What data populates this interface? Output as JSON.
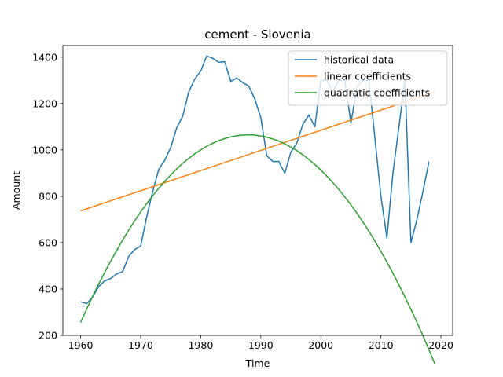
{
  "chart_data": {
    "type": "line",
    "title": "cement - Slovenia",
    "xlabel": "Time",
    "ylabel": "Amount",
    "xlim": [
      1957.05,
      2021.95
    ],
    "ylim": [
      200,
      1450
    ],
    "xticks": [
      1960,
      1970,
      1980,
      1990,
      2000,
      2010,
      2020
    ],
    "yticks": [
      200,
      400,
      600,
      800,
      1000,
      1200,
      1400
    ],
    "grid": false,
    "legend": "upper right",
    "series": [
      {
        "name": "historical data",
        "color": "#1f77b4",
        "x": [
          1960,
          1961,
          1962,
          1963,
          1964,
          1965,
          1966,
          1967,
          1968,
          1969,
          1970,
          1971,
          1972,
          1973,
          1974,
          1975,
          1976,
          1977,
          1978,
          1979,
          1980,
          1981,
          1982,
          1983,
          1984,
          1985,
          1986,
          1987,
          1988,
          1989,
          1990,
          1991,
          1992,
          1993,
          1994,
          1995,
          1996,
          1997,
          1998,
          1999,
          2000,
          2001,
          2002,
          2003,
          2004,
          2005,
          2006,
          2007,
          2008,
          2009,
          2010,
          2011,
          2012,
          2013,
          2014,
          2015,
          2016,
          2017,
          2018
        ],
        "y": [
          345,
          337,
          365,
          410,
          435,
          445,
          465,
          475,
          540,
          570,
          585,
          710,
          820,
          915,
          955,
          1010,
          1095,
          1145,
          1250,
          1305,
          1340,
          1405,
          1395,
          1378,
          1380,
          1295,
          1310,
          1290,
          1275,
          1220,
          1140,
          975,
          950,
          950,
          900,
          990,
          1030,
          1110,
          1150,
          1100,
          1300,
          1300,
          1250,
          1300,
          1300,
          1115,
          1270,
          1300,
          1300,
          1050,
          800,
          620,
          900,
          1100,
          1300,
          600,
          700,
          820,
          950
        ]
      },
      {
        "name": "linear coefficients",
        "color": "#ff7f0e",
        "x": [
          1960,
          2019
        ],
        "y": [
          737,
          1250
        ]
      },
      {
        "name": "quadratic coefficients",
        "color": "#2ca02c",
        "x": [
          1960,
          1961,
          1962,
          1963,
          1964,
          1965,
          1966,
          1967,
          1968,
          1969,
          1970,
          1971,
          1972,
          1973,
          1974,
          1975,
          1976,
          1977,
          1978,
          1979,
          1980,
          1981,
          1982,
          1983,
          1984,
          1985,
          1986,
          1987,
          1988,
          1989,
          1990,
          1991,
          1992,
          1993,
          1994,
          1995,
          1996,
          1997,
          1998,
          1999,
          2000,
          2001,
          2002,
          2003,
          2004,
          2005,
          2006,
          2007,
          2008,
          2009,
          2010,
          2011,
          2012,
          2013,
          2014,
          2015,
          2016,
          2017,
          2018,
          2019
        ],
        "y": [
          256,
          313,
          368,
          421,
          471,
          520,
          566,
          611,
          653,
          694,
          732,
          768,
          802,
          834,
          864,
          892,
          918,
          942,
          963,
          983,
          1000,
          1016,
          1029,
          1040,
          1049,
          1056,
          1061,
          1064,
          1065,
          1064,
          1060,
          1055,
          1047,
          1038,
          1026,
          1012,
          997,
          979,
          959,
          937,
          913,
          887,
          859,
          829,
          797,
          763,
          727,
          689,
          649,
          607,
          562,
          516,
          468,
          418,
          366,
          312,
          256,
          198,
          138,
          76
        ]
      }
    ]
  }
}
